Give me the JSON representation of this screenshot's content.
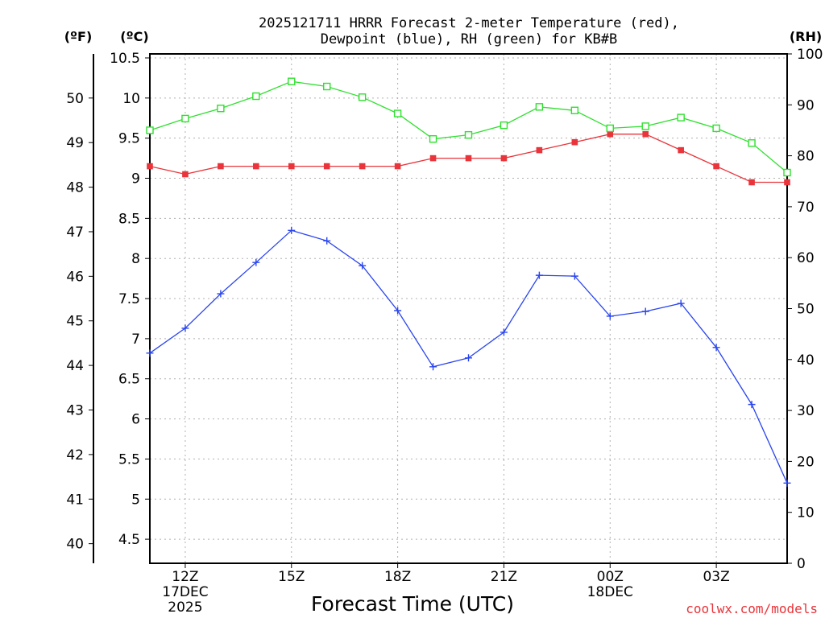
{
  "chart_data": {
    "type": "line",
    "title_lines": [
      "2025121711 HRRR Forecast 2-meter Temperature (red),",
      "Dewpoint (blue), RH (green) for KB#B"
    ],
    "xlabel": "Forecast Time (UTC)",
    "credit": "coolwx.com/models",
    "units": {
      "f": "(ºF)",
      "c": "(ºC)",
      "rh": "(RH)"
    },
    "x_hours": [
      11,
      12,
      13,
      14,
      15,
      16,
      17,
      18,
      19,
      20,
      21,
      22,
      23,
      24,
      25,
      26,
      27,
      28,
      29
    ],
    "x_range": [
      11,
      29
    ],
    "x_ticks": [
      {
        "hour": 12,
        "lines": [
          "12Z",
          "17DEC",
          "2025"
        ]
      },
      {
        "hour": 15,
        "lines": [
          "15Z"
        ]
      },
      {
        "hour": 18,
        "lines": [
          "18Z"
        ]
      },
      {
        "hour": 21,
        "lines": [
          "21Z"
        ]
      },
      {
        "hour": 24,
        "lines": [
          "00Z",
          "18DEC"
        ]
      },
      {
        "hour": 27,
        "lines": [
          "03Z"
        ]
      }
    ],
    "c_axis": {
      "range": [
        4.2,
        10.55
      ],
      "ticks": [
        "4.5",
        "5",
        "5.5",
        "6",
        "6.5",
        "7",
        "7.5",
        "8",
        "8.5",
        "9",
        "9.5",
        "10",
        "10.5"
      ]
    },
    "f_axis": {
      "ticks": [
        "40",
        "41",
        "42",
        "43",
        "44",
        "45",
        "46",
        "47",
        "48",
        "49",
        "50"
      ]
    },
    "rh_axis": {
      "range": [
        0,
        100
      ],
      "ticks": [
        "0",
        "10",
        "20",
        "30",
        "40",
        "50",
        "60",
        "70",
        "80",
        "90",
        "100"
      ]
    },
    "series": [
      {
        "name": "2-meter Temperature",
        "axis": "c",
        "color": "#e8343a",
        "marker": "filled-square",
        "values": [
          9.15,
          9.05,
          9.15,
          9.15,
          9.15,
          9.15,
          9.15,
          9.15,
          9.25,
          9.25,
          9.25,
          9.35,
          9.45,
          9.55,
          9.55,
          9.35,
          9.15,
          8.95,
          8.95
        ]
      },
      {
        "name": "Dewpoint",
        "axis": "c",
        "color": "#2a45ee",
        "marker": "plus",
        "values": [
          6.82,
          7.13,
          7.56,
          7.95,
          8.35,
          8.22,
          7.91,
          7.35,
          6.65,
          6.76,
          7.08,
          7.79,
          7.78,
          7.28,
          7.34,
          7.44,
          6.89,
          6.18,
          5.2
        ]
      },
      {
        "name": "RH",
        "axis": "rh",
        "color": "#2ee02e",
        "marker": "open-square",
        "values": [
          85.0,
          87.3,
          89.3,
          91.7,
          94.6,
          93.6,
          91.5,
          88.3,
          83.3,
          84.1,
          86.0,
          89.6,
          88.9,
          85.4,
          85.8,
          87.5,
          85.4,
          82.5,
          76.7
        ]
      }
    ]
  }
}
